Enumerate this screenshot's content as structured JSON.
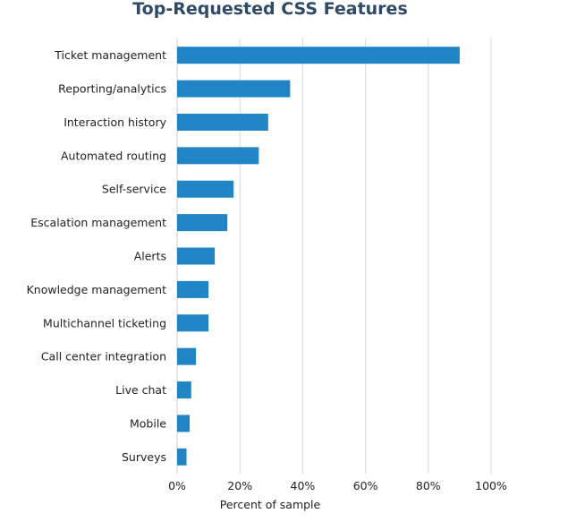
{
  "chart_data": {
    "type": "bar",
    "orientation": "horizontal",
    "title": "Top-Requested CSS Features",
    "xlabel": "Percent of sample",
    "ylabel": "",
    "xlim": [
      0,
      100
    ],
    "x_ticks": [
      "0%",
      "20%",
      "40%",
      "60%",
      "80%",
      "100%"
    ],
    "grid": true,
    "categories": [
      "Ticket management",
      "Reporting/analytics",
      "Interaction history",
      "Automated routing",
      "Self-service",
      "Escalation management",
      "Alerts",
      "Knowledge management",
      "Multichannel ticketing",
      "Call center integration",
      "Live chat",
      "Mobile",
      "Surveys"
    ],
    "values": [
      90,
      36,
      29,
      26,
      18,
      16,
      12,
      10,
      10,
      6,
      4.5,
      4,
      3
    ],
    "bar_color": "#2185c5"
  }
}
